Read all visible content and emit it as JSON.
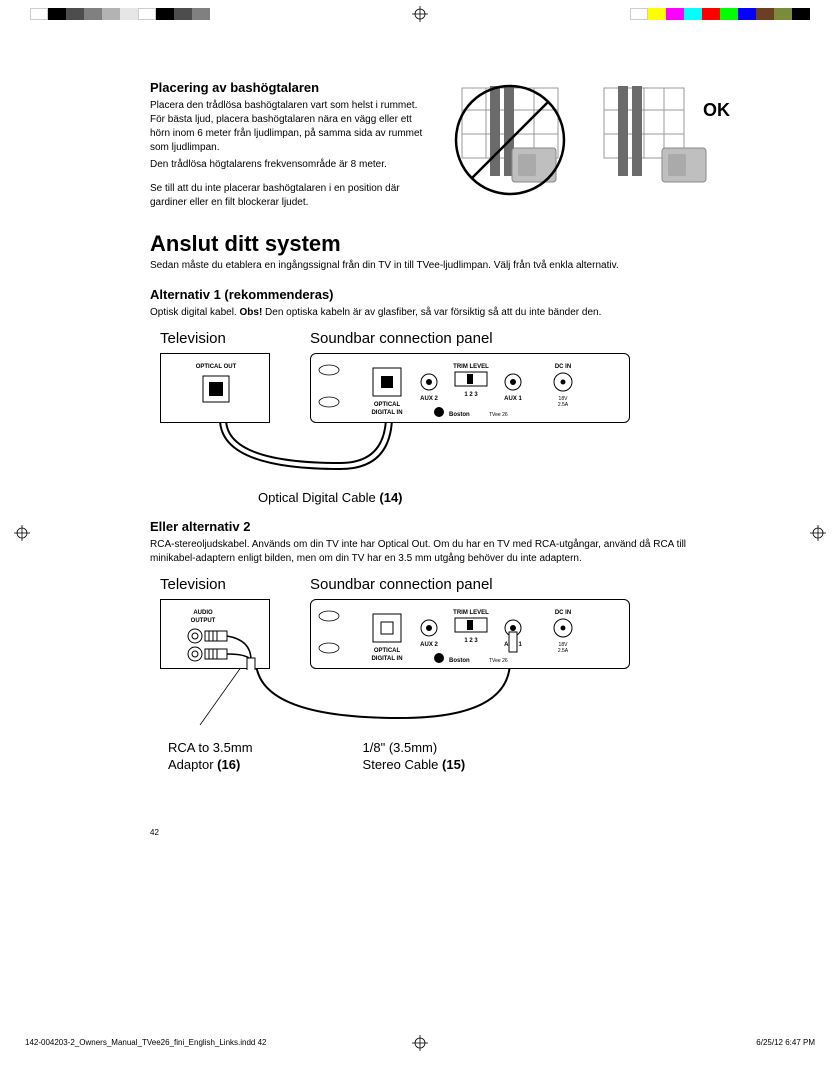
{
  "colorbar_left": [
    "#ffffff",
    "#000000",
    "#4d4d4d",
    "#808080",
    "#b3b3b3",
    "#e6e6e6",
    "#ffffff",
    "#000000",
    "#4d4d4d",
    "#808080"
  ],
  "colorbar_right": [
    "#ffffff",
    "#ffff00",
    "#ff00ff",
    "#00ffff",
    "#ff0000",
    "#00ff00",
    "#0000ff",
    "#6b3e26",
    "#7a8b3a",
    "#000000"
  ],
  "placement": {
    "heading": "Placering av bashögtalaren",
    "p1": "Placera den trådlösa bashögtalaren vart som helst i rummet. För bästa ljud, placera bashögtalaren nära en vägg eller ett hörn inom 6 meter från ljudlimpan, på samma sida av rummet som ljudlimpan.",
    "p2": "Den trådlösa högtalarens frekvensområde är 8 meter.",
    "p3": "Se till att du inte placerar bashögtalaren i en position där gardiner eller en filt blockerar ljudet.",
    "ok_label": "OK"
  },
  "connect": {
    "heading": "Anslut ditt system",
    "intro": "Sedan måste du etablera en ingångssignal från din TV in till TVee-ljudlimpan. Välj från två enkla alternativ."
  },
  "opt1": {
    "heading": "Alternativ 1 (rekommenderas)",
    "body_pre": "Optisk digital kabel. ",
    "body_bold": "Obs!",
    "body_post": "  Den optiska kabeln är av glasfiber, så var försiktig så att du inte bänder den.",
    "tv_label": "Television",
    "panel_label": "Soundbar connection panel",
    "optical_out": "OPTICAL OUT",
    "cable_caption_pre": "Optical Digital Cable ",
    "cable_caption_bold": "(14)"
  },
  "opt2": {
    "heading": "Eller alternativ 2",
    "body": "RCA-stereoljudskabel. Används om din TV inte har Optical Out. Om du har en TV med RCA-utgångar, använd då RCA till minikabel-adaptern enligt bilden, men om din TV har en 3.5 mm utgång behöver du inte adaptern.",
    "tv_label": "Television",
    "panel_label": "Soundbar connection panel",
    "audio_output_l1": "AUDIO",
    "audio_output_l2": "OUTPUT",
    "rca_l1": "RCA to 3.5mm",
    "rca_l2_pre": "Adaptor ",
    "rca_l2_bold": "(16)",
    "stereo_l1": "1/8\" (3.5mm)",
    "stereo_l2_pre": "Stereo Cable ",
    "stereo_l2_bold": "(15)"
  },
  "panel_labels": {
    "optical_in_l1": "OPTICAL",
    "optical_in_l2": "DIGITAL IN",
    "aux2": "AUX 2",
    "aux1": "AUX 1",
    "trim": "TRIM LEVEL",
    "trim_nums": "1 2 3",
    "dcin": "DC IN",
    "dc_v": "18V",
    "dc_a": "2.5A",
    "brand": "Boston",
    "model": "TVee 26"
  },
  "page_number": "42",
  "footer": {
    "left": "142-004203-2_Owners_Manual_TVee26_fini_English_Links.indd   42",
    "right": "6/25/12   6:47 PM"
  },
  "figure": {
    "window_stroke": "#999999",
    "curtain_fill": "#6b6b6b",
    "sub_fill": "#bfbfbf",
    "sub_stroke": "#888888",
    "prohibit_stroke": "#000000"
  }
}
